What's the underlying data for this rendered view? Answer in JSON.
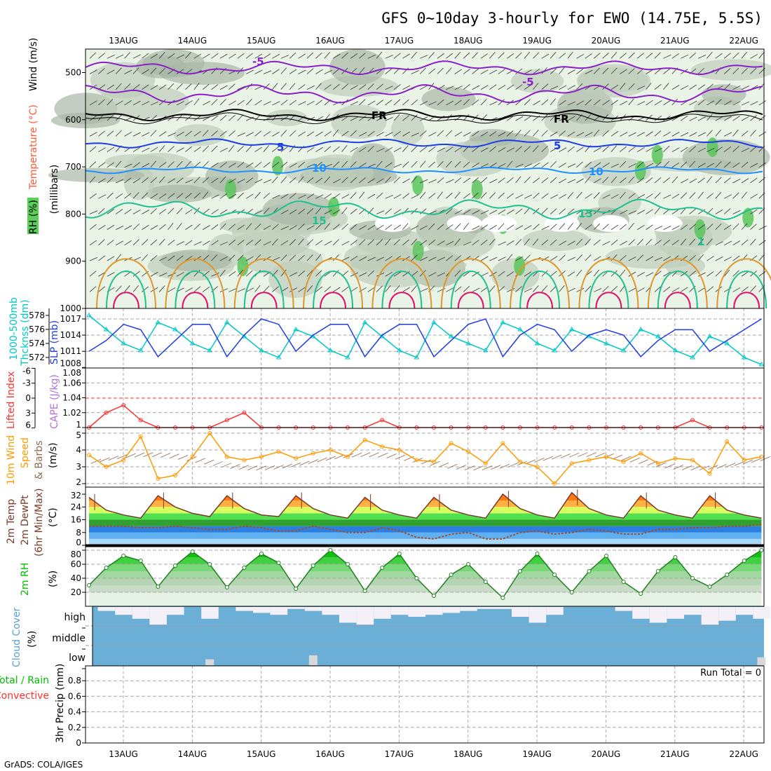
{
  "title": "GFS 0~10day 3-hourly for EWO (14.75E, 5.5S)",
  "credit": "GrADS: COLA/IGES",
  "run_total": "Run Total = 0",
  "date_labels": [
    "13AUG",
    "14AUG",
    "15AUG",
    "16AUG",
    "17AUG",
    "18AUG",
    "19AUG",
    "20AUG",
    "21AUG",
    "22AUG"
  ],
  "time_axis": {
    "start": "12AUG 12Z",
    "step_hours": 6,
    "points": 40
  },
  "colors": {
    "thickness": "#00c8c8",
    "slp": "#1e3ce6",
    "li": "#ff3030",
    "cape": "#b070e0",
    "wind": "#ff9a00",
    "barbs": "#8a6a50",
    "temp": "#7a3a2a",
    "dewpt": "#a05030",
    "rh": "#00c000",
    "cloud": "#6baed6",
    "cloud_fill": "#f4f0f8"
  },
  "labels": {
    "ua_wind": "Wind (m/s)",
    "ua_temp": "Temperature (°C)",
    "ua_rh": "RH (%)",
    "ua_p": "(millibars)",
    "thk1": "1000-500mb",
    "thk2": "Thcknss (dm)",
    "slp": "SLP (mb)",
    "li": "Lifted Index",
    "cape": "CAPE (J/kg)",
    "wind1": "10m Wind",
    "wind2": "Speed",
    "wind3": "& Barbs",
    "wind4": "(m/s)",
    "temp1": "2m Temp",
    "temp2": "2m DewPt",
    "temp3": "(6hr Min/Max)",
    "temp4": "(°C)",
    "rh1": "2m RH",
    "rh2": "(%)",
    "cloud1": "Cloud Cover",
    "cloud2": "(%)",
    "precip1": "Total / Rain",
    "precip2": "Convective",
    "precip3": "3hr Precip (mm)"
  },
  "axes": {
    "pressure": [
      "500",
      "600",
      "700",
      "800",
      "900",
      "1000"
    ],
    "thickness": [
      "578",
      "576",
      "574",
      "572"
    ],
    "slp": [
      "1017",
      "1014",
      "1011",
      "1008"
    ],
    "li": [
      "-6",
      "-3",
      "0",
      "3",
      "6"
    ],
    "cape": [
      "1.08",
      "1.06",
      "1.04",
      "1.02",
      "1"
    ],
    "wind": [
      "5",
      "4",
      "3",
      "2"
    ],
    "temp": [
      "32",
      "24",
      "16",
      "8",
      "0"
    ],
    "rh": [
      "80",
      "60",
      "40",
      "20"
    ],
    "cloud": [
      "high",
      "middle",
      "low"
    ],
    "precip": [
      "0.8",
      "0.6",
      "0.4",
      "0.2",
      "0"
    ]
  },
  "contour_labels": [
    "-5",
    "-5",
    "FR",
    "FR",
    "5",
    "5",
    "10",
    "10",
    "15",
    "15",
    "1"
  ],
  "chart_data": {
    "type": "line",
    "title": "GFS 0~10day 3-hourly for EWO (14.75E, 5.5S)",
    "xlabel": "date",
    "series": [
      {
        "name": "1000-500mb Thickness (dm)",
        "ylim": [
          571,
          579
        ],
        "values": [
          578,
          576,
          574,
          573,
          577,
          576,
          574,
          573,
          577,
          575,
          573,
          572,
          576,
          575,
          573,
          572,
          577,
          575,
          573,
          572,
          577,
          575,
          574,
          573,
          577,
          576,
          574,
          573,
          576,
          575,
          574,
          573,
          576,
          575,
          573,
          572,
          575,
          574,
          572,
          571
        ]
      },
      {
        "name": "SLP (mb)",
        "ylim": [
          1008,
          1018
        ],
        "values": [
          1011,
          1013,
          1016,
          1015,
          1010,
          1013,
          1016,
          1016,
          1010,
          1014,
          1017,
          1016,
          1011,
          1014,
          1016,
          1016,
          1010,
          1014,
          1016,
          1016,
          1010,
          1013,
          1016,
          1017,
          1010,
          1014,
          1016,
          1015,
          1011,
          1014,
          1015,
          1014,
          1010,
          1013,
          1015,
          1015,
          1011,
          1013,
          1015,
          1017
        ]
      },
      {
        "name": "CAPE (J/kg)",
        "ylim": [
          1,
          1.08
        ],
        "values": [
          1.0,
          1.02,
          1.03,
          1.01,
          1.0,
          1.0,
          1.0,
          1.0,
          1.01,
          1.02,
          1.0,
          1.0,
          1.0,
          1.0,
          1.0,
          1.0,
          1.0,
          1.01,
          1.0,
          1.0,
          1.0,
          1.0,
          1.0,
          1.0,
          1.0,
          1.0,
          1.0,
          1.0,
          1.0,
          1.0,
          1.0,
          1.0,
          1.0,
          1.0,
          1.0,
          1.01,
          1.0,
          1.0,
          1.0,
          1.0
        ]
      },
      {
        "name": "10m Wind Speed (m/s)",
        "ylim": [
          1.7,
          5.3
        ],
        "values": [
          3.7,
          3.0,
          3.4,
          4.8,
          2.3,
          2.5,
          3.6,
          5.0,
          3.6,
          3.4,
          3.6,
          3.9,
          3.5,
          3.8,
          4.0,
          3.6,
          4.6,
          4.2,
          4.0,
          3.4,
          3.3,
          4.4,
          3.9,
          3.2,
          4.4,
          3.3,
          3.0,
          2.0,
          3.2,
          3.4,
          3.6,
          3.3,
          3.8,
          3.2,
          3.5,
          3.4,
          2.6,
          4.5,
          3.4,
          3.6
        ]
      },
      {
        "name": "2m Temp (°C)",
        "ylim": [
          0,
          34
        ],
        "values": [
          30,
          22,
          19,
          17,
          31,
          24,
          20,
          18,
          31,
          23,
          19,
          18,
          31,
          23,
          19,
          17,
          30,
          22,
          19,
          17,
          30,
          22,
          19,
          17,
          32,
          23,
          19,
          17,
          33,
          23,
          19,
          17,
          31,
          22,
          19,
          17,
          31,
          22,
          19,
          17
        ]
      },
      {
        "name": "2m DewPt (°C)",
        "ylim": [
          0,
          34
        ],
        "values": [
          12,
          12,
          12,
          11,
          11,
          12,
          11,
          10,
          10,
          12,
          11,
          9,
          9,
          12,
          10,
          8,
          8,
          11,
          9,
          5,
          4,
          7,
          8,
          4,
          4,
          8,
          9,
          7,
          8,
          10,
          9,
          7,
          7,
          10,
          10,
          11,
          11,
          12,
          12,
          13
        ]
      },
      {
        "name": "2m RH (%)",
        "ylim": [
          0,
          85
        ],
        "values": [
          30,
          55,
          72,
          65,
          28,
          58,
          78,
          60,
          27,
          55,
          75,
          62,
          25,
          58,
          80,
          60,
          22,
          55,
          75,
          40,
          15,
          45,
          60,
          35,
          12,
          50,
          75,
          45,
          20,
          50,
          72,
          35,
          18,
          50,
          70,
          40,
          28,
          45,
          65,
          80
        ]
      },
      {
        "name": "High Cloud Cover (%)",
        "ylim": [
          0,
          100
        ],
        "values": [
          0,
          20,
          40,
          60,
          90,
          40,
          0,
          60,
          0,
          20,
          30,
          40,
          10,
          20,
          40,
          80,
          90,
          60,
          40,
          50,
          40,
          30,
          20,
          10,
          10,
          50,
          80,
          40,
          0,
          0,
          0,
          20,
          60,
          80,
          60,
          40,
          90,
          70,
          40,
          60
        ]
      },
      {
        "name": "Low Cloud Cover (%)",
        "ylim": [
          0,
          100
        ],
        "values": [
          0,
          0,
          0,
          0,
          0,
          0,
          0,
          30,
          0,
          0,
          0,
          0,
          0,
          50,
          0,
          0,
          0,
          0,
          0,
          0,
          0,
          0,
          0,
          0,
          0,
          0,
          0,
          0,
          0,
          0,
          0,
          0,
          0,
          0,
          0,
          0,
          0,
          0,
          0,
          40
        ]
      },
      {
        "name": "3hr Precip (mm)",
        "ylim": [
          0,
          0.95
        ],
        "values": [
          0,
          0,
          0,
          0,
          0,
          0,
          0,
          0,
          0,
          0,
          0,
          0,
          0,
          0,
          0,
          0,
          0,
          0,
          0,
          0,
          0,
          0,
          0,
          0,
          0,
          0,
          0,
          0,
          0,
          0,
          0,
          0,
          0,
          0,
          0,
          0,
          0,
          0,
          0,
          0
        ]
      }
    ]
  }
}
